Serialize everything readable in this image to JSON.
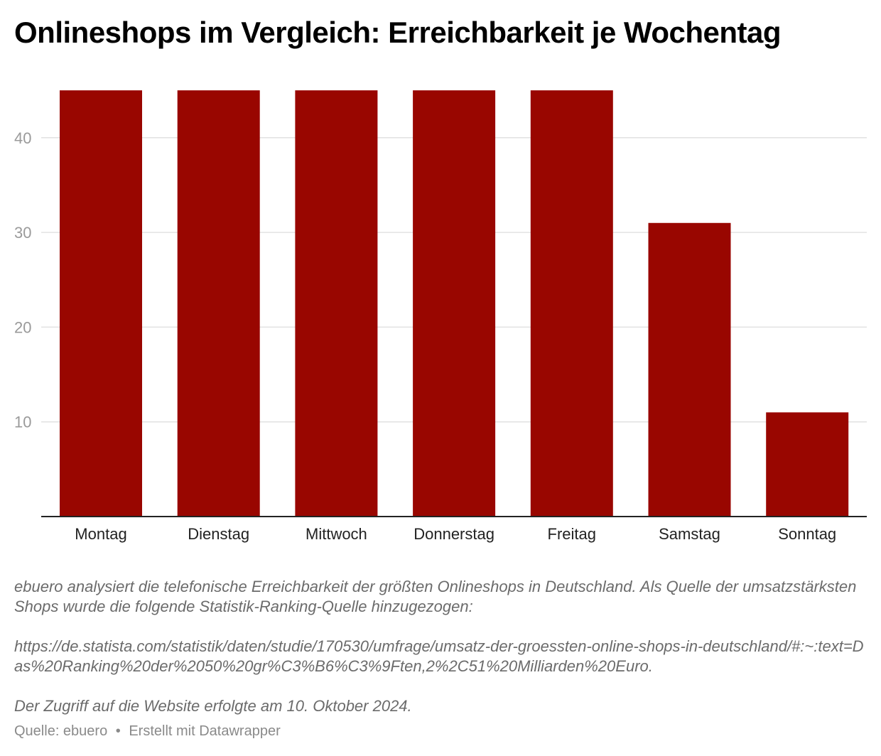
{
  "title": "Onlineshops im Vergleich: Erreichbarkeit je Wochentag",
  "chart_data": {
    "type": "bar",
    "title": "Onlineshops im Vergleich: Erreichbarkeit je Wochentag",
    "categories": [
      "Montag",
      "Dienstag",
      "Mittwoch",
      "Donnerstag",
      "Freitag",
      "Samstag",
      "Sonntag"
    ],
    "values": [
      45,
      45,
      45,
      45,
      45,
      31,
      11
    ],
    "ylim": [
      0,
      50
    ],
    "yticks": [
      10,
      20,
      30,
      40
    ],
    "grid": true,
    "bar_color": "#990600",
    "xlabel": "",
    "ylabel": ""
  },
  "notes": {
    "description": "ebuero analysiert die telefonische Erreichbarkeit der größten Onlineshops in Deutschland. Als Quelle der umsatzstärksten Shops wurde die folgende Statistik-Ranking-Quelle hinzugezogen:",
    "url": "https://de.statista.com/statistik/daten/studie/170530/umfrage/umsatz-der-groessten-online-shops-in-deutschland/#:~:text=Das%20Ranking%20der%2050%20gr%C3%B6%C3%9Ften,2%2C51%20Milliarden%20Euro.",
    "access": "Der Zugriff auf die Website erfolgte am 10. Oktober 2024."
  },
  "footer": {
    "source": "Quelle: ebuero",
    "separator": "•",
    "credit": "Erstellt mit Datawrapper"
  }
}
